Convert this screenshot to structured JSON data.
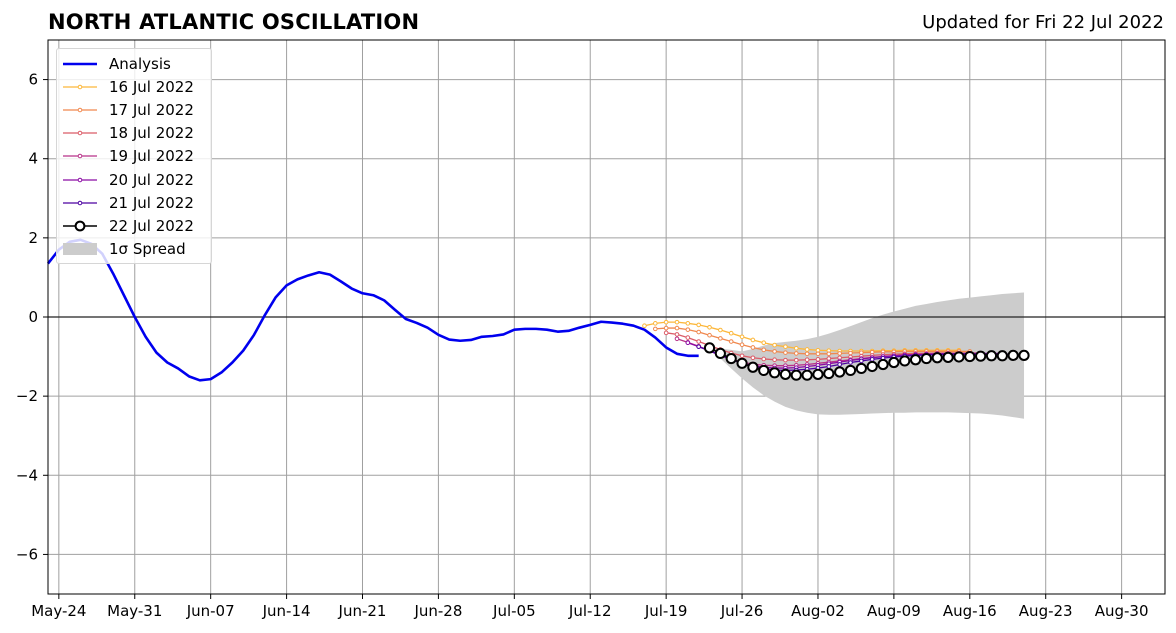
{
  "header": {
    "title": "NORTH ATLANTIC OSCILLATION",
    "updated": "Updated for Fri 22 Jul 2022"
  },
  "chart_data": {
    "type": "line",
    "title": "NORTH ATLANTIC OSCILLATION",
    "subtitle": "Updated for Fri 22 Jul 2022",
    "xlabel": "",
    "ylabel": "",
    "xlim": [
      "2022-05-23",
      "2022-09-03"
    ],
    "ylim": [
      -7,
      7
    ],
    "grid": true,
    "legend_position": "top-left",
    "x_ticks": [
      {
        "date": "2022-05-24",
        "label": "May-24"
      },
      {
        "date": "2022-05-31",
        "label": "May-31"
      },
      {
        "date": "2022-06-07",
        "label": "Jun-07"
      },
      {
        "date": "2022-06-14",
        "label": "Jun-14"
      },
      {
        "date": "2022-06-21",
        "label": "Jun-21"
      },
      {
        "date": "2022-06-28",
        "label": "Jun-28"
      },
      {
        "date": "2022-07-05",
        "label": "Jul-05"
      },
      {
        "date": "2022-07-12",
        "label": "Jul-12"
      },
      {
        "date": "2022-07-19",
        "label": "Jul-19"
      },
      {
        "date": "2022-07-26",
        "label": "Jul-26"
      },
      {
        "date": "2022-08-02",
        "label": "Aug-02"
      },
      {
        "date": "2022-08-09",
        "label": "Aug-09"
      },
      {
        "date": "2022-08-16",
        "label": "Aug-16"
      },
      {
        "date": "2022-08-23",
        "label": "Aug-23"
      },
      {
        "date": "2022-08-30",
        "label": "Aug-30"
      }
    ],
    "y_ticks": [
      {
        "value": 6,
        "label": "6"
      },
      {
        "value": 4,
        "label": "4"
      },
      {
        "value": 2,
        "label": "2"
      },
      {
        "value": 0,
        "label": "0"
      },
      {
        "value": -2,
        "label": "−2"
      },
      {
        "value": -4,
        "label": "−4"
      },
      {
        "value": -6,
        "label": "−6"
      }
    ],
    "analysis": {
      "name": "Analysis",
      "color": "#0000ee",
      "dates": [
        "2022-05-23",
        "2022-05-24",
        "2022-05-25",
        "2022-05-26",
        "2022-05-27",
        "2022-05-28",
        "2022-05-29",
        "2022-05-30",
        "2022-05-31",
        "2022-06-01",
        "2022-06-02",
        "2022-06-03",
        "2022-06-04",
        "2022-06-05",
        "2022-06-06",
        "2022-06-07",
        "2022-06-08",
        "2022-06-09",
        "2022-06-10",
        "2022-06-11",
        "2022-06-12",
        "2022-06-13",
        "2022-06-14",
        "2022-06-15",
        "2022-06-16",
        "2022-06-17",
        "2022-06-18",
        "2022-06-19",
        "2022-06-20",
        "2022-06-21",
        "2022-06-22",
        "2022-06-23",
        "2022-06-24",
        "2022-06-25",
        "2022-06-26",
        "2022-06-27",
        "2022-06-28",
        "2022-06-29",
        "2022-06-30",
        "2022-07-01",
        "2022-07-02",
        "2022-07-03",
        "2022-07-04",
        "2022-07-05",
        "2022-07-06",
        "2022-07-07",
        "2022-07-08",
        "2022-07-09",
        "2022-07-10",
        "2022-07-11",
        "2022-07-12",
        "2022-07-13",
        "2022-07-14",
        "2022-07-15",
        "2022-07-16",
        "2022-07-17",
        "2022-07-18",
        "2022-07-19",
        "2022-07-20",
        "2022-07-21",
        "2022-07-22"
      ],
      "values": [
        1.35,
        1.7,
        1.9,
        1.95,
        1.85,
        1.6,
        1.1,
        0.55,
        0.0,
        -0.5,
        -0.9,
        -1.15,
        -1.3,
        -1.5,
        -1.6,
        -1.57,
        -1.4,
        -1.15,
        -0.85,
        -0.45,
        0.05,
        0.5,
        0.8,
        0.95,
        1.05,
        1.13,
        1.07,
        0.9,
        0.72,
        0.6,
        0.55,
        0.42,
        0.18,
        -0.05,
        -0.15,
        -0.27,
        -0.45,
        -0.57,
        -0.6,
        -0.58,
        -0.5,
        -0.48,
        -0.44,
        -0.32,
        -0.3,
        -0.3,
        -0.32,
        -0.37,
        -0.35,
        -0.27,
        -0.2,
        -0.12,
        -0.14,
        -0.17,
        -0.22,
        -0.32,
        -0.52,
        -0.77,
        -0.93,
        -0.98,
        -0.98
      ]
    },
    "forecasts": [
      {
        "name": "16 Jul 2022",
        "color": "#fcb73a",
        "start": "2022-07-17",
        "values": [
          -0.22,
          -0.16,
          -0.13,
          -0.13,
          -0.16,
          -0.2,
          -0.26,
          -0.33,
          -0.41,
          -0.5,
          -0.58,
          -0.65,
          -0.71,
          -0.75,
          -0.79,
          -0.82,
          -0.84,
          -0.85,
          -0.86,
          -0.86,
          -0.86,
          -0.86,
          -0.85,
          -0.85,
          -0.84,
          -0.84,
          -0.84,
          -0.84,
          -0.84,
          -0.84
        ]
      },
      {
        "name": "17 Jul 2022",
        "color": "#f0884e",
        "start": "2022-07-18",
        "values": [
          -0.3,
          -0.28,
          -0.28,
          -0.32,
          -0.38,
          -0.46,
          -0.54,
          -0.62,
          -0.7,
          -0.77,
          -0.83,
          -0.87,
          -0.9,
          -0.92,
          -0.93,
          -0.93,
          -0.93,
          -0.92,
          -0.91,
          -0.9,
          -0.89,
          -0.88,
          -0.88,
          -0.87,
          -0.87,
          -0.87,
          -0.87,
          -0.87,
          -0.87,
          -0.87
        ]
      },
      {
        "name": "18 Jul 2022",
        "color": "#db5c68",
        "start": "2022-07-19",
        "values": [
          -0.4,
          -0.44,
          -0.52,
          -0.62,
          -0.72,
          -0.82,
          -0.91,
          -0.98,
          -1.03,
          -1.06,
          -1.08,
          -1.09,
          -1.09,
          -1.08,
          -1.07,
          -1.05,
          -1.03,
          -1.01,
          -0.99,
          -0.97,
          -0.95,
          -0.94,
          -0.93,
          -0.92,
          -0.92,
          -0.91,
          -0.91,
          -0.91,
          -0.91,
          -0.91
        ]
      },
      {
        "name": "19 Jul 2022",
        "color": "#b83289",
        "start": "2022-07-20",
        "values": [
          -0.55,
          -0.64,
          -0.74,
          -0.85,
          -0.96,
          -1.06,
          -1.14,
          -1.19,
          -1.22,
          -1.23,
          -1.23,
          -1.22,
          -1.2,
          -1.17,
          -1.14,
          -1.11,
          -1.08,
          -1.05,
          -1.02,
          -1.0,
          -0.98,
          -0.96,
          -0.95,
          -0.94,
          -0.93,
          -0.93,
          -0.93,
          -0.93,
          -0.93,
          -0.93
        ]
      },
      {
        "name": "20 Jul 2022",
        "color": "#8b0aa5",
        "start": "2022-07-21",
        "values": [
          -0.65,
          -0.75,
          -0.86,
          -0.97,
          -1.08,
          -1.17,
          -1.23,
          -1.27,
          -1.29,
          -1.29,
          -1.28,
          -1.25,
          -1.22,
          -1.18,
          -1.14,
          -1.1,
          -1.06,
          -1.03,
          -1.0,
          -0.98,
          -0.96,
          -0.95,
          -0.94,
          -0.93,
          -0.93,
          -0.93,
          -0.92,
          -0.92,
          -0.92,
          -0.92
        ]
      },
      {
        "name": "21 Jul 2022",
        "color": "#4c02a1",
        "start": "2022-07-22",
        "values": [
          -0.75,
          -0.85,
          -0.96,
          -1.07,
          -1.17,
          -1.25,
          -1.31,
          -1.34,
          -1.35,
          -1.34,
          -1.32,
          -1.29,
          -1.25,
          -1.2,
          -1.15,
          -1.11,
          -1.07,
          -1.04,
          -1.01,
          -0.99,
          -0.97,
          -0.96,
          -0.95,
          -0.94,
          -0.94,
          -0.94,
          -0.94,
          -0.94,
          -0.94,
          -0.94
        ]
      },
      {
        "name": "22 Jul 2022",
        "color": "#000000",
        "start": "2022-07-23",
        "markers": "circle",
        "values": [
          -0.78,
          -0.92,
          -1.05,
          -1.17,
          -1.27,
          -1.35,
          -1.41,
          -1.45,
          -1.47,
          -1.47,
          -1.45,
          -1.43,
          -1.39,
          -1.35,
          -1.3,
          -1.25,
          -1.2,
          -1.15,
          -1.11,
          -1.08,
          -1.05,
          -1.03,
          -1.02,
          -1.01,
          -1.0,
          -0.99,
          -0.98,
          -0.98,
          -0.97,
          -0.97
        ]
      }
    ],
    "spread": {
      "name": "1σ Spread",
      "color": "#cccccc",
      "start": "2022-07-23",
      "upper": [
        -0.78,
        -0.8,
        -0.83,
        -0.87,
        -0.81,
        -0.72,
        -0.66,
        -0.63,
        -0.6,
        -0.56,
        -0.5,
        -0.42,
        -0.33,
        -0.23,
        -0.13,
        -0.03,
        0.06,
        0.14,
        0.21,
        0.28,
        0.33,
        0.38,
        0.42,
        0.46,
        0.49,
        0.52,
        0.55,
        0.58,
        0.6,
        0.62
      ],
      "lower": [
        -0.78,
        -1.05,
        -1.3,
        -1.55,
        -1.78,
        -1.98,
        -2.14,
        -2.27,
        -2.36,
        -2.42,
        -2.46,
        -2.47,
        -2.47,
        -2.46,
        -2.45,
        -2.44,
        -2.43,
        -2.42,
        -2.42,
        -2.41,
        -2.41,
        -2.41,
        -2.41,
        -2.42,
        -2.43,
        -2.44,
        -2.46,
        -2.49,
        -2.53,
        -2.57
      ]
    }
  }
}
